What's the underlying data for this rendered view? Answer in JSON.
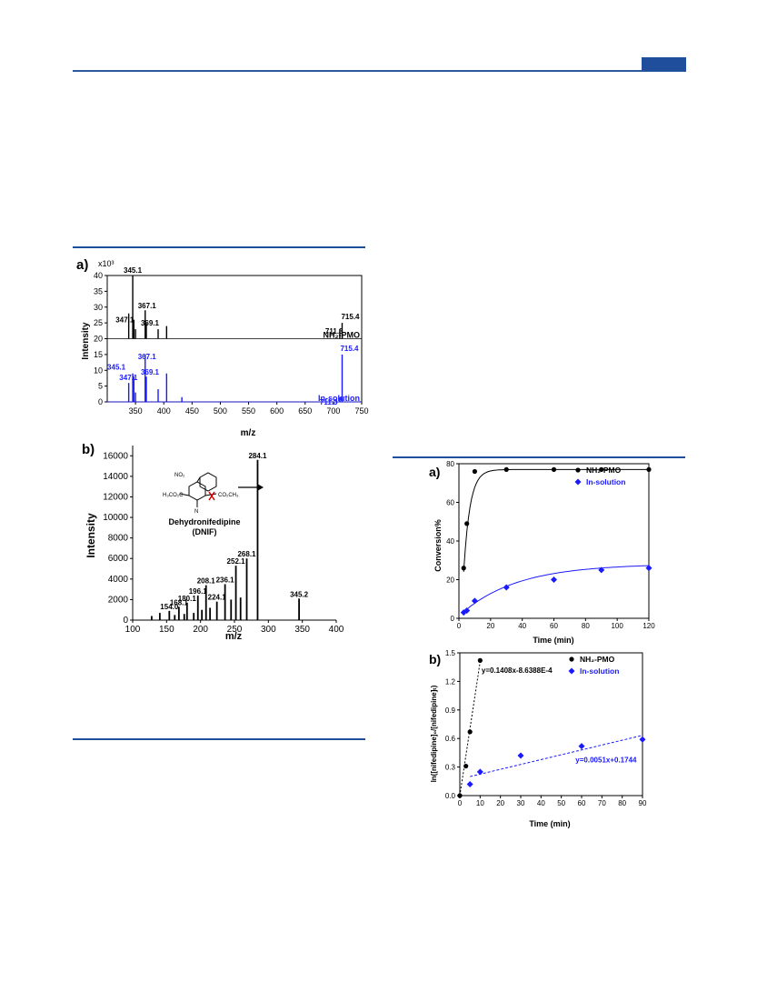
{
  "colors": {
    "rule": "#1f4e9c",
    "black_series": "#000000",
    "blue_series": "#1a1aff"
  },
  "chart_data": [
    {
      "panel_label": "a)",
      "type": "line",
      "subtype": "mass-spectrum-stacked",
      "xlabel": "m/z",
      "ylabel": "Intensity",
      "y_multiplier": "x10³",
      "xlim": [
        300,
        750
      ],
      "ylim": [
        0,
        40
      ],
      "x_ticks": [
        "350",
        "400",
        "450",
        "500",
        "550",
        "600",
        "650",
        "700",
        "750"
      ],
      "y_ticks": [
        "0",
        "5",
        "10",
        "15",
        "20",
        "25",
        "30",
        "35",
        "40"
      ],
      "series": [
        {
          "name": "NH₂-PMO",
          "color": "#000000",
          "baseline": 20,
          "peaks": [
            [
              338,
              8
            ],
            [
              345.1,
              20
            ],
            [
              347.1,
              6
            ],
            [
              350,
              3
            ],
            [
              367.1,
              9
            ],
            [
              369.1,
              5
            ],
            [
              390,
              3
            ],
            [
              405,
              4
            ],
            [
              711.3,
              3
            ],
            [
              715.4,
              5
            ]
          ],
          "labels": [
            "345.1",
            "347.1",
            "367.1",
            "369.1",
            "711.3",
            "715.4"
          ]
        },
        {
          "name": "In-solution",
          "color": "#1a1aff",
          "baseline": 0,
          "peaks": [
            [
              338,
              6
            ],
            [
              345.1,
              9
            ],
            [
              347.1,
              8
            ],
            [
              350,
              3
            ],
            [
              367.1,
              15
            ],
            [
              369.1,
              8
            ],
            [
              390,
              4
            ],
            [
              405,
              9
            ],
            [
              432,
              1.5
            ],
            [
              711.3,
              1.5
            ],
            [
              715.4,
              15
            ]
          ],
          "labels": [
            "369.1",
            "345.1",
            "347.1",
            "367.1",
            "715.4",
            "711.3"
          ]
        }
      ]
    },
    {
      "panel_label": "b)",
      "type": "bar",
      "subtype": "mass-spectrum",
      "xlabel": "m/z",
      "ylabel": "Intensity",
      "xlim": [
        100,
        400
      ],
      "ylim": [
        0,
        17000
      ],
      "x_ticks": [
        "100",
        "150",
        "200",
        "250",
        "300",
        "350",
        "400"
      ],
      "y_ticks": [
        "0",
        "2000",
        "4000",
        "6000",
        "8000",
        "10000",
        "12000",
        "14000",
        "16000"
      ],
      "peaks": [
        [
          128,
          400
        ],
        [
          140,
          700
        ],
        [
          154.0,
          900
        ],
        [
          162,
          500
        ],
        [
          168.1,
          1300
        ],
        [
          176,
          600
        ],
        [
          180.1,
          1700
        ],
        [
          190,
          700
        ],
        [
          196.1,
          2400
        ],
        [
          202,
          1000
        ],
        [
          208.1,
          3400
        ],
        [
          214,
          1200
        ],
        [
          224.1,
          1800
        ],
        [
          236.1,
          3500
        ],
        [
          245,
          2000
        ],
        [
          252.1,
          5300
        ],
        [
          259,
          2200
        ],
        [
          268.1,
          6000
        ],
        [
          284.1,
          15600
        ],
        [
          345.2,
          2100
        ]
      ],
      "labels": [
        "154.0",
        "168.1",
        "180.1",
        "196.1",
        "208.1",
        "224.1",
        "236.1",
        "252.1",
        "268.1",
        "284.1",
        "345.2"
      ],
      "molecule_name": "Dehydronifedipine",
      "molecule_abbr": "(DNIF)",
      "molecule_groups": [
        "NO₂",
        "H₃CO₂C",
        "CO₂CH₃",
        "N"
      ]
    },
    {
      "panel_label": "a)",
      "type": "scatter",
      "xlabel": "Time (min)",
      "ylabel": "Conversion%",
      "xlim": [
        0,
        120
      ],
      "ylim": [
        0,
        80
      ],
      "x_ticks": [
        "0",
        "20",
        "40",
        "60",
        "80",
        "100",
        "120"
      ],
      "y_ticks": [
        "0",
        "20",
        "40",
        "60",
        "80"
      ],
      "legend_position": "top-right",
      "series": [
        {
          "name": "NH₂-PMO",
          "color": "#000000",
          "marker": "circle",
          "x": [
            3,
            5,
            10,
            30,
            60,
            90,
            120
          ],
          "y": [
            26,
            49,
            76,
            77,
            77,
            77,
            77
          ]
        },
        {
          "name": "In-solution",
          "color": "#1a1aff",
          "marker": "diamond",
          "x": [
            3,
            5,
            10,
            30,
            60,
            90,
            120
          ],
          "y": [
            3,
            4,
            9,
            16,
            20,
            25,
            26
          ]
        }
      ]
    },
    {
      "panel_label": "b)",
      "type": "scatter",
      "xlabel": "Time (min)",
      "ylabel": "ln([nifedipine]₀/[nifedipine]ₜ)",
      "xlim": [
        0,
        90
      ],
      "ylim": [
        0,
        1.5
      ],
      "x_ticks": [
        "0",
        "10",
        "20",
        "30",
        "40",
        "50",
        "60",
        "70",
        "80",
        "90"
      ],
      "y_ticks": [
        "0.0",
        "0.3",
        "0.6",
        "0.9",
        "1.2",
        "1.5"
      ],
      "legend_position": "top-right",
      "series": [
        {
          "name": "NH₂-PMO",
          "color": "#000000",
          "marker": "circle",
          "x": [
            0,
            3,
            5,
            10
          ],
          "y": [
            0,
            0.31,
            0.67,
            1.42
          ],
          "fit": "y=0.1408x-8.6388E-4"
        },
        {
          "name": "In-solution",
          "color": "#1a1aff",
          "marker": "diamond",
          "x": [
            5,
            10,
            30,
            60,
            90
          ],
          "y": [
            0.12,
            0.25,
            0.42,
            0.52,
            0.59
          ],
          "fit": "y=0.0051x+0.1744"
        }
      ]
    }
  ]
}
